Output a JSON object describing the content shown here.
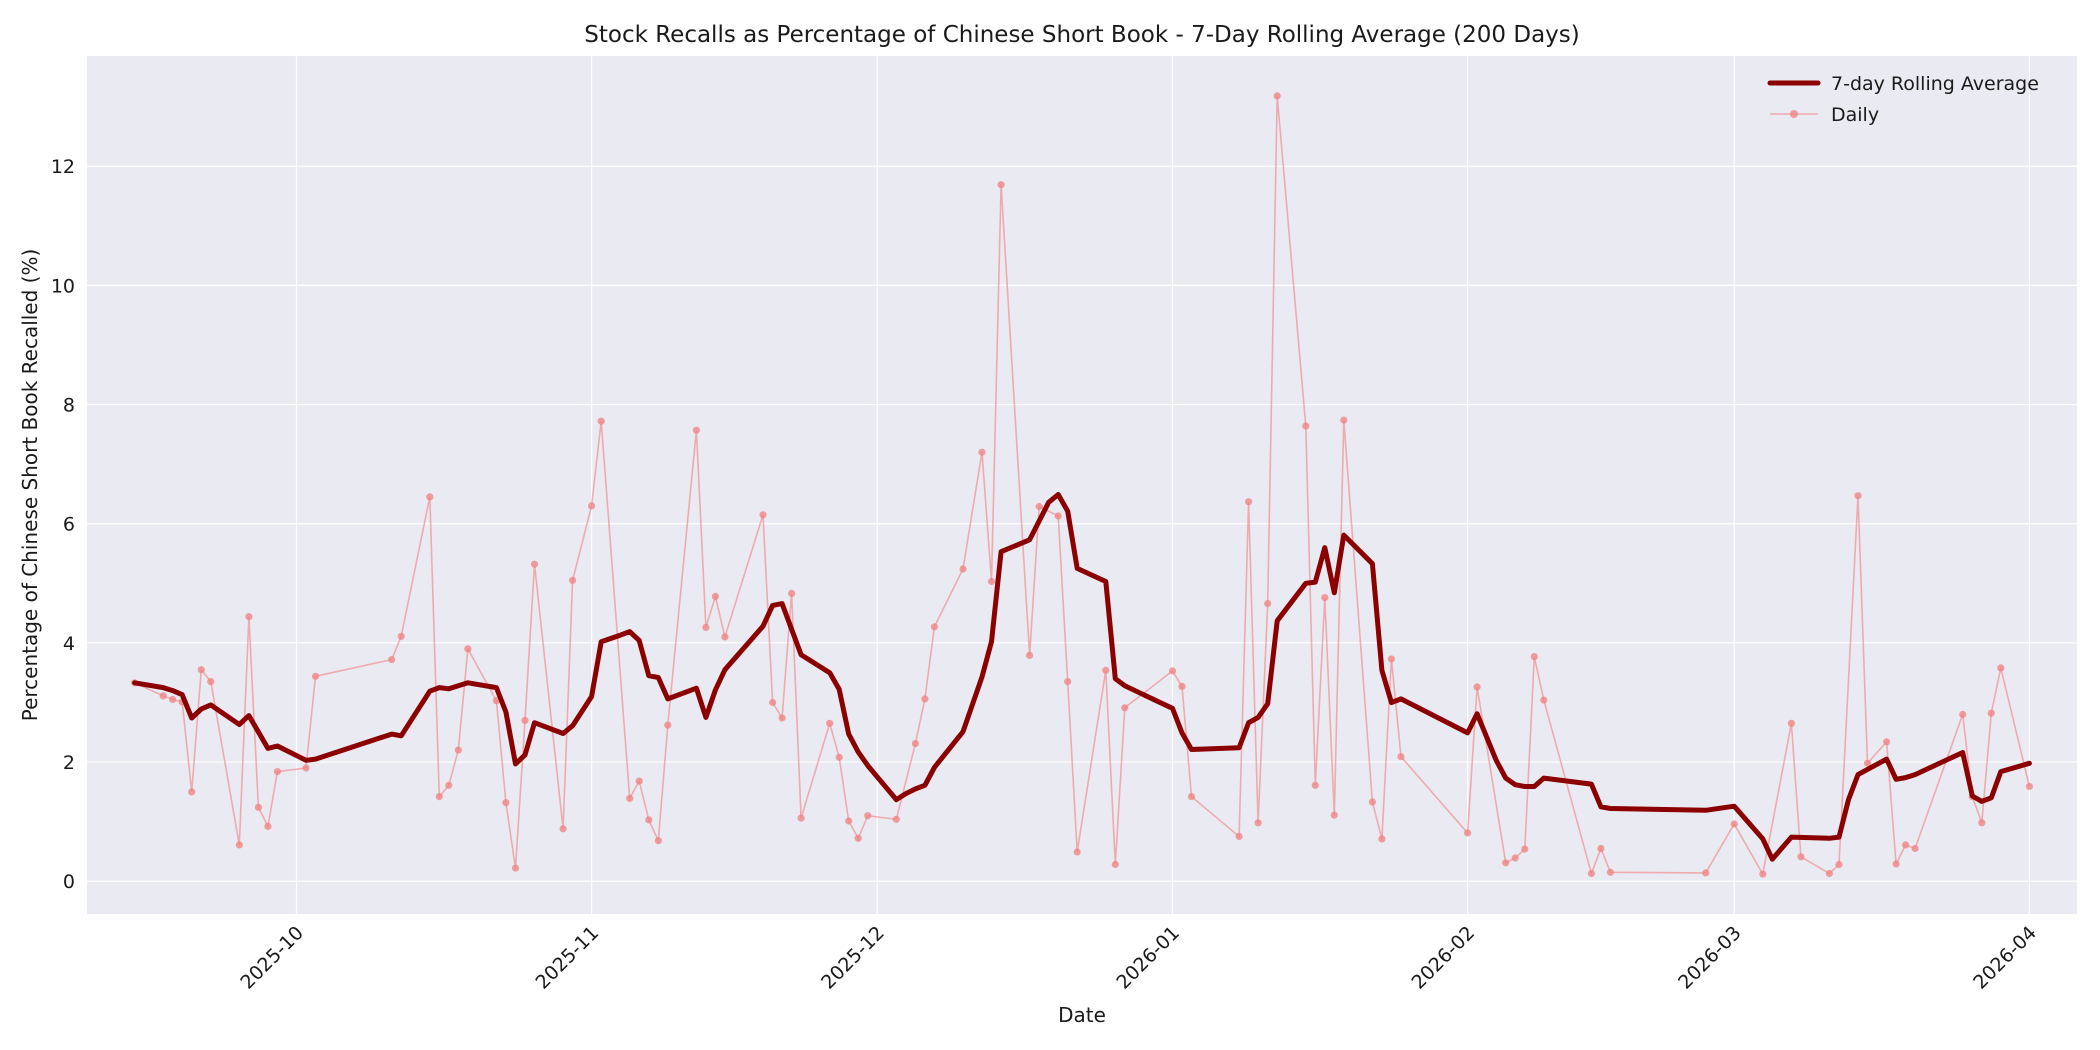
{
  "chart_data": {
    "type": "line",
    "title": "Stock Recalls as Percentage of Chinese Short Book - 7-Day Rolling Average (200 Days)",
    "xlabel": "Date",
    "ylabel": "Percentage of Chinese Short Book Recalled (%)",
    "xlim": [
      "2025-09-09",
      "2026-04-06"
    ],
    "ylim": [
      -0.55,
      13.85
    ],
    "x_ticks": [
      "2025-10-01",
      "2025-11-01",
      "2025-12-01",
      "2026-01-01",
      "2026-02-01",
      "2026-03-01",
      "2026-04-01"
    ],
    "x_tick_labels": [
      "2025-10",
      "2025-11",
      "2025-12",
      "2026-01",
      "2026-02",
      "2026-03",
      "2026-04"
    ],
    "y_ticks": [
      0,
      2,
      4,
      6,
      8,
      10,
      12
    ],
    "y_tick_labels": [
      "0",
      "2",
      "4",
      "6",
      "8",
      "10",
      "12"
    ],
    "grid": true,
    "legend_position": "top-right",
    "colors": {
      "background": "#eaeaf2",
      "grid": "#ffffff",
      "rolling": "#8b0000",
      "daily": "#f08080"
    },
    "series": [
      {
        "name": "7-day Rolling Average",
        "style": "thick-line",
        "points": [
          [
            "2025-09-14",
            3.33
          ],
          [
            "2025-09-17",
            3.25
          ],
          [
            "2025-09-18",
            3.2
          ],
          [
            "2025-09-19",
            3.13
          ],
          [
            "2025-09-20",
            2.74
          ],
          [
            "2025-09-21",
            2.89
          ],
          [
            "2025-09-22",
            2.96
          ],
          [
            "2025-09-25",
            2.63
          ],
          [
            "2025-09-26",
            2.78
          ],
          [
            "2025-09-28",
            2.23
          ],
          [
            "2025-09-29",
            2.27
          ],
          [
            "2025-10-02",
            2.03
          ],
          [
            "2025-10-03",
            2.05
          ],
          [
            "2025-10-11",
            2.47
          ],
          [
            "2025-10-12",
            2.44
          ],
          [
            "2025-10-15",
            3.19
          ],
          [
            "2025-10-16",
            3.25
          ],
          [
            "2025-10-17",
            3.23
          ],
          [
            "2025-10-19",
            3.33
          ],
          [
            "2025-10-22",
            3.25
          ],
          [
            "2025-10-23",
            2.84
          ],
          [
            "2025-10-24",
            1.97
          ],
          [
            "2025-10-25",
            2.12
          ],
          [
            "2025-10-26",
            2.66
          ],
          [
            "2025-10-29",
            2.48
          ],
          [
            "2025-10-30",
            2.61
          ],
          [
            "2025-11-01",
            3.1
          ],
          [
            "2025-11-02",
            4.02
          ],
          [
            "2025-11-04",
            4.13
          ],
          [
            "2025-11-05",
            4.19
          ],
          [
            "2025-11-06",
            4.04
          ],
          [
            "2025-11-07",
            3.45
          ],
          [
            "2025-11-08",
            3.42
          ],
          [
            "2025-11-09",
            3.06
          ],
          [
            "2025-11-12",
            3.24
          ],
          [
            "2025-11-13",
            2.75
          ],
          [
            "2025-11-14",
            3.21
          ],
          [
            "2025-11-15",
            3.55
          ],
          [
            "2025-11-19",
            4.28
          ],
          [
            "2025-11-20",
            4.63
          ],
          [
            "2025-11-21",
            4.66
          ],
          [
            "2025-11-23",
            3.8
          ],
          [
            "2025-11-26",
            3.5
          ],
          [
            "2025-11-27",
            3.22
          ],
          [
            "2025-11-28",
            2.47
          ],
          [
            "2025-11-29",
            2.17
          ],
          [
            "2025-11-30",
            1.94
          ],
          [
            "2025-12-03",
            1.37
          ],
          [
            "2025-12-04",
            1.47
          ],
          [
            "2025-12-05",
            1.55
          ],
          [
            "2025-12-06",
            1.61
          ],
          [
            "2025-12-07",
            1.91
          ],
          [
            "2025-12-10",
            2.51
          ],
          [
            "2025-12-12",
            3.43
          ],
          [
            "2025-12-13",
            4.02
          ],
          [
            "2025-12-14",
            5.53
          ],
          [
            "2025-12-17",
            5.73
          ],
          [
            "2025-12-19",
            6.36
          ],
          [
            "2025-12-20",
            6.49
          ],
          [
            "2025-12-21",
            6.21
          ],
          [
            "2025-12-22",
            5.25
          ],
          [
            "2025-12-25",
            5.03
          ],
          [
            "2025-12-26",
            3.4
          ],
          [
            "2025-12-27",
            3.28
          ],
          [
            "2026-01-01",
            2.9
          ],
          [
            "2026-01-02",
            2.49
          ],
          [
            "2026-01-03",
            2.21
          ],
          [
            "2026-01-08",
            2.24
          ],
          [
            "2026-01-09",
            2.66
          ],
          [
            "2026-01-10",
            2.75
          ],
          [
            "2026-01-11",
            2.98
          ],
          [
            "2026-01-12",
            4.37
          ],
          [
            "2026-01-15",
            5.0
          ],
          [
            "2026-01-16",
            5.02
          ],
          [
            "2026-01-17",
            5.6
          ],
          [
            "2026-01-18",
            4.84
          ],
          [
            "2026-01-19",
            5.81
          ],
          [
            "2026-01-22",
            5.33
          ],
          [
            "2026-01-23",
            3.54
          ],
          [
            "2026-01-24",
            3.0
          ],
          [
            "2026-01-25",
            3.06
          ],
          [
            "2026-02-01",
            2.49
          ],
          [
            "2026-02-02",
            2.81
          ],
          [
            "2026-02-04",
            2.03
          ],
          [
            "2026-02-05",
            1.73
          ],
          [
            "2026-02-06",
            1.62
          ],
          [
            "2026-02-07",
            1.59
          ],
          [
            "2026-02-08",
            1.59
          ],
          [
            "2026-02-09",
            1.73
          ],
          [
            "2026-02-14",
            1.63
          ],
          [
            "2026-02-15",
            1.25
          ],
          [
            "2026-02-16",
            1.22
          ],
          [
            "2026-02-26",
            1.19
          ],
          [
            "2026-03-01",
            1.26
          ],
          [
            "2026-03-04",
            0.71
          ],
          [
            "2026-03-05",
            0.37
          ],
          [
            "2026-03-07",
            0.74
          ],
          [
            "2026-03-11",
            0.72
          ],
          [
            "2026-03-12",
            0.74
          ],
          [
            "2026-03-13",
            1.37
          ],
          [
            "2026-03-14",
            1.79
          ],
          [
            "2026-03-17",
            2.05
          ],
          [
            "2026-03-18",
            1.71
          ],
          [
            "2026-03-19",
            1.74
          ],
          [
            "2026-03-20",
            1.79
          ],
          [
            "2026-03-25",
            2.16
          ],
          [
            "2026-03-26",
            1.43
          ],
          [
            "2026-03-27",
            1.34
          ],
          [
            "2026-03-28",
            1.4
          ],
          [
            "2026-03-29",
            1.84
          ],
          [
            "2026-04-01",
            1.98
          ]
        ]
      },
      {
        "name": "Daily",
        "style": "thin-line-markers",
        "points": [
          [
            "2025-09-14",
            3.33
          ],
          [
            "2025-09-17",
            3.11
          ],
          [
            "2025-09-18",
            3.05
          ],
          [
            "2025-09-19",
            3.01
          ],
          [
            "2025-09-20",
            1.5
          ],
          [
            "2025-09-21",
            3.55
          ],
          [
            "2025-09-22",
            3.35
          ],
          [
            "2025-09-25",
            0.61
          ],
          [
            "2025-09-26",
            4.44
          ],
          [
            "2025-09-27",
            1.24
          ],
          [
            "2025-09-28",
            0.92
          ],
          [
            "2025-09-29",
            1.84
          ],
          [
            "2025-10-02",
            1.9
          ],
          [
            "2025-10-03",
            3.44
          ],
          [
            "2025-10-11",
            3.72
          ],
          [
            "2025-10-12",
            4.11
          ],
          [
            "2025-10-15",
            6.45
          ],
          [
            "2025-10-16",
            1.42
          ],
          [
            "2025-10-17",
            1.61
          ],
          [
            "2025-10-18",
            2.2
          ],
          [
            "2025-10-19",
            3.9
          ],
          [
            "2025-10-22",
            3.03
          ],
          [
            "2025-10-23",
            1.32
          ],
          [
            "2025-10-24",
            0.22
          ],
          [
            "2025-10-25",
            2.7
          ],
          [
            "2025-10-26",
            5.32
          ],
          [
            "2025-10-29",
            0.88
          ],
          [
            "2025-10-30",
            5.05
          ],
          [
            "2025-11-01",
            6.3
          ],
          [
            "2025-11-02",
            7.72
          ],
          [
            "2025-11-05",
            1.39
          ],
          [
            "2025-11-06",
            1.68
          ],
          [
            "2025-11-07",
            1.03
          ],
          [
            "2025-11-08",
            0.68
          ],
          [
            "2025-11-09",
            2.62
          ],
          [
            "2025-11-12",
            7.57
          ],
          [
            "2025-11-13",
            4.26
          ],
          [
            "2025-11-14",
            4.78
          ],
          [
            "2025-11-15",
            4.1
          ],
          [
            "2025-11-19",
            6.15
          ],
          [
            "2025-11-20",
            3.0
          ],
          [
            "2025-11-21",
            2.74
          ],
          [
            "2025-11-22",
            4.83
          ],
          [
            "2025-11-23",
            1.06
          ],
          [
            "2025-11-26",
            2.65
          ],
          [
            "2025-11-27",
            2.08
          ],
          [
            "2025-11-28",
            1.01
          ],
          [
            "2025-11-29",
            0.72
          ],
          [
            "2025-11-30",
            1.1
          ],
          [
            "2025-12-03",
            1.04
          ],
          [
            "2025-12-05",
            2.31
          ],
          [
            "2025-12-06",
            3.06
          ],
          [
            "2025-12-07",
            4.27
          ],
          [
            "2025-12-10",
            5.24
          ],
          [
            "2025-12-12",
            7.2
          ],
          [
            "2025-12-13",
            5.03
          ],
          [
            "2025-12-14",
            11.69
          ],
          [
            "2025-12-17",
            3.79
          ],
          [
            "2025-12-18",
            6.29
          ],
          [
            "2025-12-20",
            6.13
          ],
          [
            "2025-12-21",
            3.35
          ],
          [
            "2025-12-22",
            0.49
          ],
          [
            "2025-12-25",
            3.54
          ],
          [
            "2025-12-26",
            0.28
          ],
          [
            "2025-12-27",
            2.91
          ],
          [
            "2026-01-01",
            3.53
          ],
          [
            "2026-01-02",
            3.27
          ],
          [
            "2026-01-03",
            1.42
          ],
          [
            "2026-01-08",
            0.75
          ],
          [
            "2026-01-09",
            6.37
          ],
          [
            "2026-01-10",
            0.98
          ],
          [
            "2026-01-11",
            4.66
          ],
          [
            "2026-01-12",
            13.18
          ],
          [
            "2026-01-15",
            7.64
          ],
          [
            "2026-01-16",
            1.61
          ],
          [
            "2026-01-17",
            4.76
          ],
          [
            "2026-01-18",
            1.11
          ],
          [
            "2026-01-19",
            7.74
          ],
          [
            "2026-01-22",
            1.33
          ],
          [
            "2026-01-23",
            0.71
          ],
          [
            "2026-01-24",
            3.73
          ],
          [
            "2026-01-25",
            2.09
          ],
          [
            "2026-02-01",
            0.81
          ],
          [
            "2026-02-02",
            3.26
          ],
          [
            "2026-02-05",
            0.31
          ],
          [
            "2026-02-06",
            0.39
          ],
          [
            "2026-02-07",
            0.54
          ],
          [
            "2026-02-08",
            3.77
          ],
          [
            "2026-02-09",
            3.04
          ],
          [
            "2026-02-14",
            0.13
          ],
          [
            "2026-02-15",
            0.55
          ],
          [
            "2026-02-16",
            0.15
          ],
          [
            "2026-02-26",
            0.14
          ],
          [
            "2026-03-01",
            0.96
          ],
          [
            "2026-03-04",
            0.12
          ],
          [
            "2026-03-07",
            2.65
          ],
          [
            "2026-03-08",
            0.41
          ],
          [
            "2026-03-11",
            0.13
          ],
          [
            "2026-03-12",
            0.28
          ],
          [
            "2026-03-14",
            6.47
          ],
          [
            "2026-03-15",
            1.98
          ],
          [
            "2026-03-17",
            2.34
          ],
          [
            "2026-03-18",
            0.29
          ],
          [
            "2026-03-19",
            0.61
          ],
          [
            "2026-03-20",
            0.55
          ],
          [
            "2026-03-25",
            2.8
          ],
          [
            "2026-03-26",
            1.42
          ],
          [
            "2026-03-27",
            0.98
          ],
          [
            "2026-03-28",
            2.82
          ],
          [
            "2026-03-29",
            3.58
          ],
          [
            "2026-04-01",
            1.59
          ]
        ]
      }
    ]
  }
}
